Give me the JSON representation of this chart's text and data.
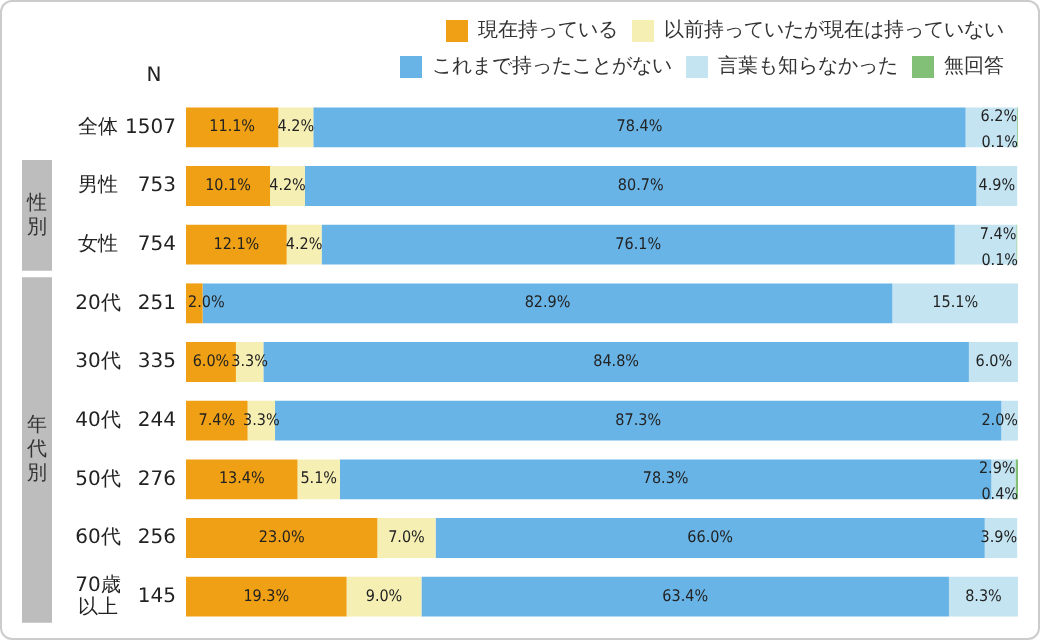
{
  "chart_data": {
    "type": "bar",
    "orientation": "horizontal",
    "stacked": true,
    "legend": "top right",
    "tick_labels": false,
    "categories": [
      "全体",
      "男性",
      "女性",
      "20代",
      "30代",
      "40代",
      "50代",
      "60代",
      "70歳以上"
    ],
    "y2_categories": [
      "1507",
      "753",
      "754",
      "251",
      "335",
      "244",
      "276",
      "256",
      "145"
    ],
    "xlim": [
      0,
      100
    ],
    "annotations": [
      "N",
      "性別",
      "年代別"
    ],
    "series": [
      {
        "name": "現在持っている",
        "color": "#f0a014",
        "values": [
          11.1,
          10.1,
          12.1,
          2.0,
          6.0,
          7.4,
          13.4,
          23.0,
          19.3
        ],
        "value_labels": [
          "11.1%",
          "10.1%",
          "12.1%",
          "2.0%",
          "6.0%",
          "7.4%",
          "13.4%",
          "23.0%",
          "19.3%"
        ]
      },
      {
        "name": "以前持っていたが現在は持っていない",
        "color": "#f5efb4",
        "values": [
          4.2,
          4.2,
          4.2,
          null,
          3.3,
          3.3,
          5.1,
          7.0,
          9.0
        ],
        "value_labels": [
          "4.2%",
          "4.2%",
          "4.2%",
          null,
          "3.3%",
          "3.3%",
          "5.1%",
          "7.0%",
          "9.0%"
        ]
      },
      {
        "name": "これまで持ったことがない",
        "color": "#69b4e6",
        "values": [
          78.4,
          80.7,
          76.1,
          82.9,
          84.8,
          87.3,
          78.3,
          66.0,
          63.4
        ],
        "value_labels": [
          "78.4%",
          "80.7%",
          "76.1%",
          "82.9%",
          "84.8%",
          "87.3%",
          "78.3%",
          "66.0%",
          "63.4%"
        ]
      },
      {
        "name": "言葉も知らなかった",
        "color": "#c4e4f2",
        "values": [
          6.2,
          4.9,
          7.4,
          15.1,
          6.0,
          2.0,
          2.9,
          3.9,
          8.3
        ],
        "value_labels": [
          "6.2%",
          "4.9%",
          "7.4%",
          "15.1%",
          "6.0%",
          "2.0%",
          "2.9%",
          "3.9%",
          "8.3%"
        ]
      },
      {
        "name": "無回答",
        "color": "#82c078",
        "values": [
          0.1,
          null,
          0.1,
          null,
          null,
          null,
          0.4,
          null,
          null
        ],
        "value_labels": [
          "0.1%",
          null,
          "0.1%",
          null,
          null,
          null,
          "0.4%",
          null,
          null
        ]
      }
    ]
  }
}
